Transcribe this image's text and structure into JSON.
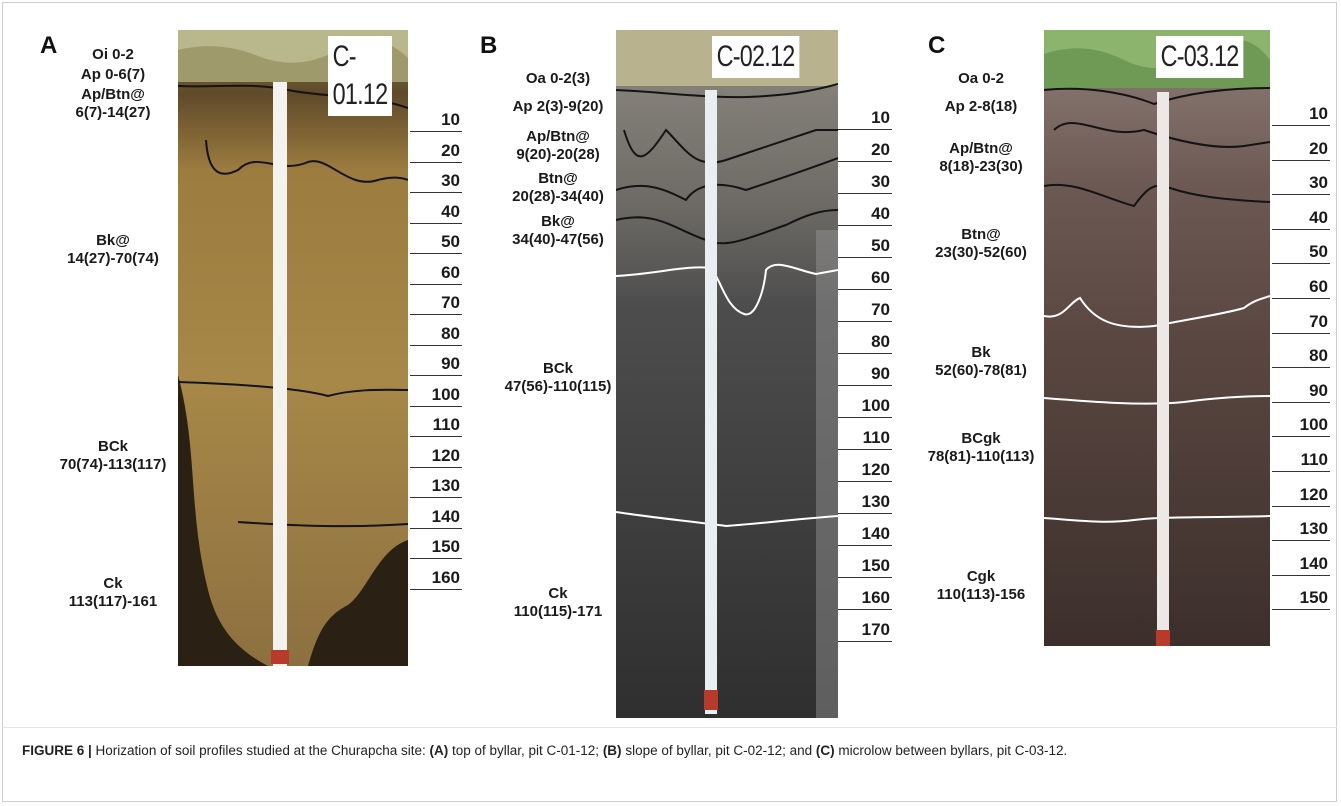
{
  "figure": {
    "caption_label": "FIGURE 6 |",
    "caption_parts": [
      {
        "text": " Horization of soil profiles studied at the Churapcha site: ",
        "bold": false
      },
      {
        "text": "(A)",
        "bold": true
      },
      {
        "text": " top of byllar, pit C-01-12; ",
        "bold": false
      },
      {
        "text": "(B)",
        "bold": true
      },
      {
        "text": " slope of byllar, pit C-02-12; and ",
        "bold": false
      },
      {
        "text": "(C)",
        "bold": true
      },
      {
        "text": " microlow between byllars, pit C-03-12.",
        "bold": false
      }
    ]
  },
  "panels": [
    {
      "letter": "A",
      "pit_label": "C-01.12",
      "horizons": [
        {
          "lines": [
            "Oi  0-2"
          ]
        },
        {
          "lines": [
            "Ap  0-6(7)"
          ]
        },
        {
          "lines": [
            "Ap/Btn@",
            "6(7)-14(27)"
          ]
        },
        {
          "lines": [
            "Bk@",
            "14(27)-70(74)"
          ]
        },
        {
          "lines": [
            "BCk",
            "70(74)-113(117)"
          ]
        },
        {
          "lines": [
            "Ck",
            "113(117)-161"
          ]
        }
      ],
      "depths": [
        "10",
        "20",
        "30",
        "40",
        "50",
        "60",
        "70",
        "80",
        "90",
        "100",
        "110",
        "120",
        "130",
        "140",
        "150",
        "160"
      ],
      "colors": {
        "soil": "#a58546",
        "soil_dark": "#6f5424",
        "shadow": "#2a2014",
        "boundary": "#141414"
      }
    },
    {
      "letter": "B",
      "pit_label": "C-02.12",
      "horizons": [
        {
          "lines": [
            "Oa  0-2(3)"
          ]
        },
        {
          "lines": [
            "Ap 2(3)-9(20)"
          ]
        },
        {
          "lines": [
            "Ap/Btn@",
            "9(20)-20(28)"
          ]
        },
        {
          "lines": [
            "Btn@",
            "20(28)-34(40)"
          ]
        },
        {
          "lines": [
            "Bk@",
            "34(40)-47(56)"
          ]
        },
        {
          "lines": [
            "BCk",
            "47(56)-110(115)"
          ]
        },
        {
          "lines": [
            "Ck",
            "110(115)-171"
          ]
        }
      ],
      "depths": [
        "10",
        "20",
        "30",
        "40",
        "50",
        "60",
        "70",
        "80",
        "90",
        "100",
        "110",
        "120",
        "130",
        "140",
        "150",
        "160",
        "170"
      ],
      "colors": {
        "soil": "#5a5a5a",
        "soil_dark": "#2e2e2e",
        "top": "#8d8a82",
        "boundary_dark": "#141414",
        "boundary_light": "#ffffff"
      }
    },
    {
      "letter": "C",
      "pit_label": "C-03.12",
      "horizons": [
        {
          "lines": [
            "Oa  0-2"
          ]
        },
        {
          "lines": [
            "Ap 2-8(18)"
          ]
        },
        {
          "lines": [
            "Ap/Btn@",
            "8(18)-23(30)"
          ]
        },
        {
          "lines": [
            "Btn@",
            "23(30)-52(60)"
          ]
        },
        {
          "lines": [
            "Bk",
            "52(60)-78(81)"
          ]
        },
        {
          "lines": [
            "BCgk",
            "78(81)-110(113)"
          ]
        },
        {
          "lines": [
            "Cgk",
            "110(113)-156"
          ]
        }
      ],
      "depths": [
        "10",
        "20",
        "30",
        "40",
        "50",
        "60",
        "70",
        "80",
        "90",
        "100",
        "110",
        "120",
        "130",
        "140",
        "150"
      ],
      "colors": {
        "soil": "#5e4a44",
        "soil_dark": "#3a2d29",
        "top": "#8a7a74",
        "boundary_dark": "#141414",
        "boundary_light": "#ffffff"
      }
    }
  ]
}
